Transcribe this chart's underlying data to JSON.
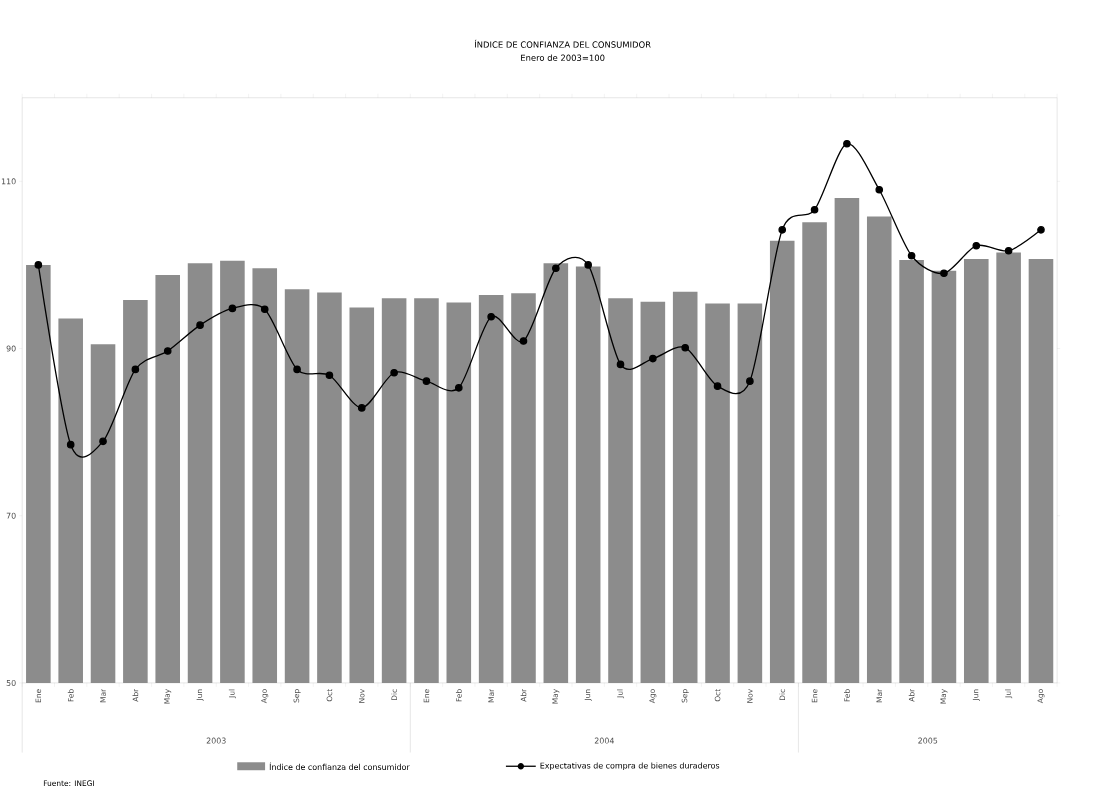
{
  "chart_data": {
    "type": "bar",
    "title": "ÍNDICE DE CONFIANZA DEL CONSUMIDOR",
    "subtitle": "Enero de 2003=100",
    "categories": [
      "Ene",
      "Feb",
      "Mar",
      "Abr",
      "May",
      "Jun",
      "Jul",
      "Ago",
      "Sep",
      "Oct",
      "Nov",
      "Dic",
      "Ene",
      "Feb",
      "Mar",
      "Abr",
      "May",
      "Jun",
      "Jul",
      "Ago",
      "Sep",
      "Oct",
      "Nov",
      "Dic",
      "Ene",
      "Feb",
      "Mar",
      "Abr",
      "May",
      "Jun",
      "Jul",
      "Ago"
    ],
    "series": [
      {
        "name": "Índice de confianza del consumidor",
        "color": "#8c8c8c",
        "values": [
          100.0,
          93.6,
          90.5,
          95.8,
          98.8,
          100.2,
          100.5,
          99.6,
          97.1,
          96.7,
          94.9,
          96.0,
          96.0,
          95.5,
          96.4,
          96.6,
          100.2,
          99.8,
          96.0,
          95.6,
          96.8,
          95.4,
          95.4,
          102.9,
          105.1,
          108.0,
          105.8,
          100.6,
          99.3,
          100.7,
          101.5,
          100.7
        ]
      },
      {
        "name": "Expectativas de compra de bienes duraderos",
        "type": "line",
        "color": "#000000",
        "marker": "circle",
        "line_style": "solid",
        "values": [
          100.0,
          78.5,
          78.9,
          87.5,
          89.7,
          92.8,
          94.8,
          94.7,
          87.5,
          86.8,
          82.9,
          87.1,
          86.1,
          85.3,
          93.8,
          90.9,
          99.6,
          100.0,
          88.1,
          88.8,
          90.1,
          85.5,
          86.1,
          104.2,
          106.6,
          114.5,
          109.0,
          101.1,
          99.0,
          102.3,
          101.7,
          104.2
        ]
      }
    ],
    "ylim": [
      50,
      120
    ],
    "yticks": [
      50,
      70,
      90,
      110
    ],
    "legend": "bottom",
    "annotations": [
      "2003",
      "2004",
      "2005",
      "Fuente: INEGI"
    ]
  }
}
